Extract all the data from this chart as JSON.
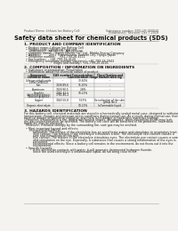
{
  "bg_color": "#f0ede8",
  "page_color": "#f5f3ef",
  "header_left": "Product Name: Lithium Ion Battery Cell",
  "header_right_1": "Substance number: SDS-LIB-000010",
  "header_right_2": "Established / Revision: Dec.7.2018",
  "title": "Safety data sheet for chemical products (SDS)",
  "section1_title": "1. PRODUCT AND COMPANY IDENTIFICATION",
  "section1_lines": [
    "  • Product name: Lithium Ion Battery Cell",
    "  • Product code: Cylindrical-type cell",
    "      (INR18650J, INR18650L, INR18650A)",
    "  • Company name:    Sanyo Electric Co., Ltd., Mobile Energy Company",
    "  • Address:         2001  Kamimuhara, Sumoto City, Hyogo, Japan",
    "  • Telephone number:    +81-799-26-4111",
    "  • Fax number:    +81-799-26-4120",
    "  • Emergency telephone number (daytime): +81-799-26-3942",
    "                                 (Night and holiday): +81-799-26-4101"
  ],
  "section2_title": "2. COMPOSITION / INFORMATION ON INGREDIENTS",
  "section2_intro": "  • Substance or preparation: Preparation",
  "section2_sub": "  • Information about the chemical nature of product:",
  "table_headers": [
    "Component\nChemical name",
    "CAS number",
    "Concentration /\nConcentration range",
    "Classification and\nhazard labeling"
  ],
  "table_rows": [
    [
      "Lithium cobalt oxide\n(LiMn/Co/Ni/O2)",
      "-",
      "30-60%",
      "-"
    ],
    [
      "Iron",
      "7439-89-6",
      "15-25%",
      "-"
    ],
    [
      "Aluminum",
      "7429-90-5",
      "2-8%",
      "-"
    ],
    [
      "Graphite\n(Artificial graphite)\n(Natural graphite)",
      "7782-42-5\n7782-40-2",
      "10-20%",
      "-"
    ],
    [
      "Copper",
      "7440-50-8",
      "5-15%",
      "Sensitization of the skin\ngroup No.2"
    ],
    [
      "Organic electrolyte",
      "-",
      "10-20%",
      "Inflammable liquid"
    ]
  ],
  "section3_title": "3. HAZARDS IDENTIFICATION",
  "section3_para1": [
    "For this battery cell, chemical materials are stored in a hermetically sealed metal case, designed to withstand",
    "temperature changes and pressure-stress conditions during normal use. As a result, during normal use, there is no",
    "physical danger of ignition or explosion and there is no danger of hazardous materials leakage.",
    "  However, if exposed to a fire, added mechanical shocks, decompose, when electrolyte inside may leak,",
    "the gas sealed container be operated. The battery cell case will be breached of fire-problems, hazardous",
    "materials may be released.",
    "  Moreover, if heated strongly by the surrounding fire, soot gas may be emitted."
  ],
  "section3_bullet1_title": "  • Most important hazard and effects:",
  "section3_bullet1_lines": [
    "      Human health effects:",
    "          Inhalation: The release of the electrolyte has an anesthesia action and stimulates to respiratory tract.",
    "          Skin contact: The release of the electrolyte stimulates a skin. The electrolyte skin contact causes a",
    "          sore and stimulation on the skin.",
    "          Eye contact: The release of the electrolyte stimulates eyes. The electrolyte eye contact causes a sore",
    "          and stimulation on the eye. Especially, a substance that causes a strong inflammation of the eyes is",
    "          contained.",
    "          Environmental effects: Since a battery cell remains in the environment, do not throw out it into the",
    "          environment."
  ],
  "section3_bullet2_title": "  • Specific hazards:",
  "section3_bullet2_lines": [
    "          If the electrolyte contacts with water, it will generate detrimental hydrogen fluoride.",
    "          Since the used electrolyte is inflammable liquid, do not bring close to fire."
  ],
  "footer_line": true
}
